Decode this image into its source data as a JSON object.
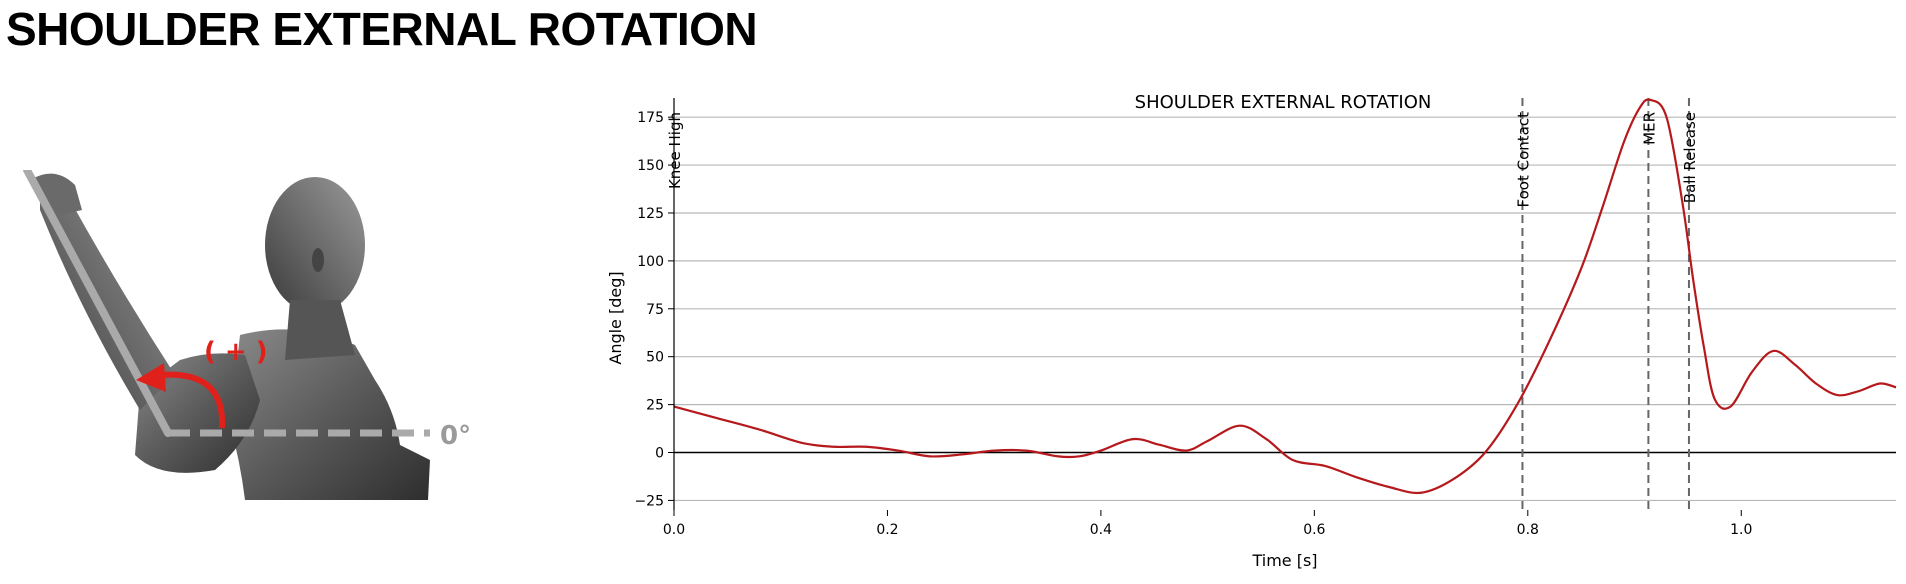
{
  "page": {
    "title": "SHOULDER EXTERNAL ROTATION"
  },
  "figure": {
    "icon": "arm-rotation-illustration",
    "positive_label": "( + )",
    "zero_label": "0°",
    "arrow_color": "#e0201b",
    "reference_line_color": "#aaaaaa"
  },
  "chart_data": {
    "type": "line",
    "title": "SHOULDER EXTERNAL ROTATION",
    "xlabel": "Time [s]",
    "ylabel": "Angle [deg]",
    "xlim": [
      0.0,
      1.145
    ],
    "ylim": [
      -30,
      185
    ],
    "xticks": [
      0.0,
      0.2,
      0.4,
      0.6,
      0.8,
      1.0
    ],
    "xtick_labels": [
      "0.0",
      "0.2",
      "0.4",
      "0.6",
      "0.8",
      "1.0"
    ],
    "yticks": [
      -25,
      0,
      25,
      50,
      75,
      100,
      125,
      150,
      175
    ],
    "ytick_labels": [
      "−25",
      "0",
      "25",
      "50",
      "75",
      "100",
      "125",
      "150",
      "175"
    ],
    "grid": "horizontal",
    "line_color": "#b5191c",
    "series": [
      {
        "x": [
          0.0,
          0.04,
          0.08,
          0.12,
          0.15,
          0.18,
          0.21,
          0.24,
          0.27,
          0.3,
          0.33,
          0.36,
          0.38,
          0.4,
          0.43,
          0.455,
          0.48,
          0.5,
          0.53,
          0.555,
          0.58,
          0.61,
          0.64,
          0.67,
          0.7,
          0.73,
          0.76,
          0.79,
          0.82,
          0.85,
          0.87,
          0.89,
          0.905,
          0.915,
          0.93,
          0.945,
          0.955,
          0.965,
          0.975,
          0.99,
          1.01,
          1.03,
          1.05,
          1.07,
          1.09,
          1.11,
          1.13,
          1.145
        ],
        "y": [
          24,
          18,
          12,
          5,
          3,
          3,
          1,
          -2,
          -1,
          1,
          1,
          -2,
          -2,
          1,
          7,
          4,
          1,
          6,
          14,
          7,
          -4,
          -7,
          -13,
          -18,
          -21,
          -14,
          0,
          25,
          58,
          96,
          128,
          162,
          180,
          184,
          175,
          130,
          90,
          55,
          28,
          24,
          42,
          53,
          46,
          36,
          30,
          32,
          36,
          34
        ]
      }
    ],
    "events": [
      {
        "label": "Knee High",
        "x": 0.0
      },
      {
        "label": "Foot Contact",
        "x": 0.795
      },
      {
        "label": "MER",
        "x": 0.913
      },
      {
        "label": "Ball Release",
        "x": 0.951
      }
    ]
  }
}
